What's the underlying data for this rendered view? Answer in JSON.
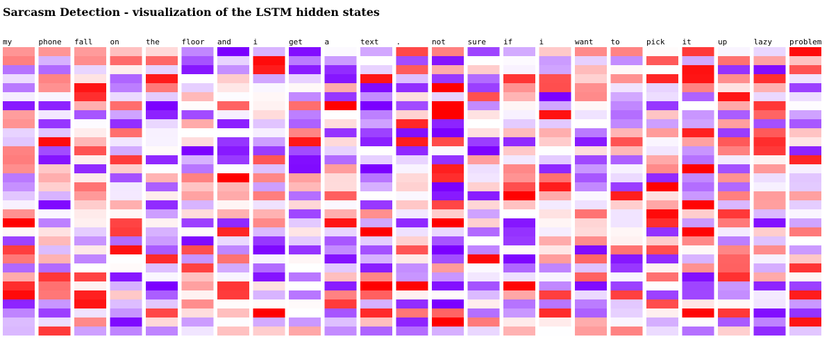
{
  "title": "Sarcasm Detection - visualization of the LSTM hidden states",
  "chart_data": {
    "type": "heatmap",
    "title": "Sarcasm Detection - visualization of the LSTM hidden states",
    "tokens": [
      "my",
      "phone",
      "fall",
      "on",
      "the",
      "floor",
      "and",
      "i",
      "get",
      "a",
      "text",
      ".",
      "not",
      "sure",
      "if",
      "i",
      "want",
      "to",
      "pick",
      "it",
      "up",
      "lazy",
      "problem"
    ],
    "colorscale": {
      "negative": "#7b00ff",
      "zero": "#ffffff",
      "positive": "#ff0000"
    },
    "value_range": [
      -1,
      1
    ]
  }
}
